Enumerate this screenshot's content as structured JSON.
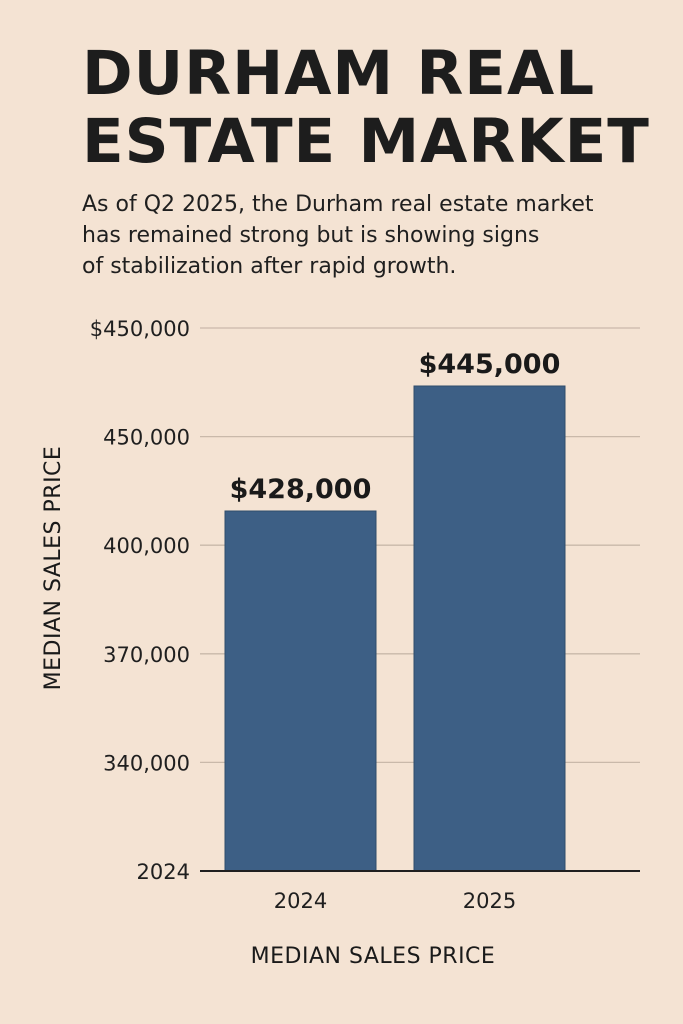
{
  "title_lines": [
    "DURHAM REAL",
    "ESTATE MARKET"
  ],
  "subtitle_lines": [
    "As of Q2 2025, the Durham real estate market",
    "has remained strong but is showing signs",
    "of stabilization after rapid growth."
  ],
  "colors": {
    "background": "#f4e3d3",
    "bar": "#3d5f85",
    "gridline": "#c9b9aa",
    "text": "#1c1c1c"
  },
  "chart_data": {
    "type": "bar",
    "categories": [
      "2024",
      "2025"
    ],
    "values": [
      428000,
      445000
    ],
    "data_labels": [
      "$428,000",
      "$445,000"
    ],
    "y_tick_labels": [
      "2024",
      "340,000",
      "370,000",
      "400,000",
      "450,000",
      "$450,000"
    ],
    "xlabel": "MEDIAN SALES PRICE",
    "ylabel": "MEDIAN SALES PRICE",
    "grid": true,
    "legend": "none"
  }
}
